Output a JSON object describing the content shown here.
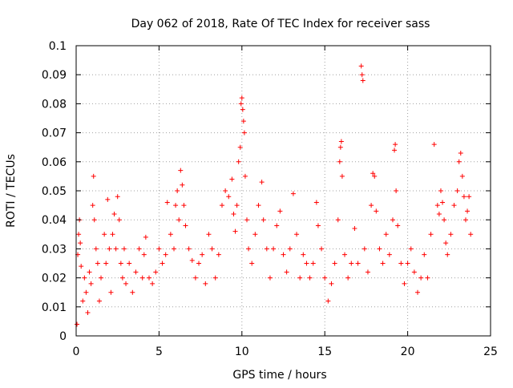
{
  "chart_data": {
    "type": "scatter",
    "title": "Day 062 of 2018, Rate Of TEC Index for receiver sass",
    "xlabel": "GPS time / hours",
    "ylabel": "ROTI / TECUs",
    "xlim": [
      0,
      25
    ],
    "ylim": [
      0,
      0.1
    ],
    "x_ticks": [
      0,
      5,
      10,
      15,
      20,
      25
    ],
    "x_tick_labels": [
      "0",
      "5",
      "10",
      "15",
      "20",
      "25"
    ],
    "y_ticks": [
      0,
      0.01,
      0.02,
      0.03,
      0.04,
      0.05,
      0.06,
      0.07,
      0.08,
      0.09,
      0.1
    ],
    "y_tick_labels": [
      "0",
      "0.01",
      "0.02",
      "0.03",
      "0.04",
      "0.05",
      "0.06",
      "0.07",
      "0.08",
      "0.09",
      "0.1"
    ],
    "grid": true,
    "marker": "plus",
    "marker_color": "#ff0000",
    "series": [
      {
        "points": [
          [
            0.05,
            0.004
          ],
          [
            0.1,
            0.028
          ],
          [
            0.15,
            0.035
          ],
          [
            0.2,
            0.04
          ],
          [
            0.25,
            0.032
          ],
          [
            0.3,
            0.024
          ],
          [
            0.4,
            0.012
          ],
          [
            0.5,
            0.02
          ],
          [
            0.6,
            0.015
          ],
          [
            0.7,
            0.008
          ],
          [
            0.8,
            0.022
          ],
          [
            0.9,
            0.018
          ],
          [
            1.0,
            0.045
          ],
          [
            1.05,
            0.055
          ],
          [
            1.1,
            0.04
          ],
          [
            1.2,
            0.03
          ],
          [
            1.3,
            0.025
          ],
          [
            1.4,
            0.012
          ],
          [
            1.5,
            0.02
          ],
          [
            1.7,
            0.035
          ],
          [
            1.8,
            0.025
          ],
          [
            1.9,
            0.047
          ],
          [
            2.0,
            0.03
          ],
          [
            2.1,
            0.015
          ],
          [
            2.2,
            0.035
          ],
          [
            2.3,
            0.042
          ],
          [
            2.4,
            0.03
          ],
          [
            2.5,
            0.048
          ],
          [
            2.6,
            0.04
          ],
          [
            2.7,
            0.025
          ],
          [
            2.8,
            0.02
          ],
          [
            2.9,
            0.03
          ],
          [
            3.0,
            0.018
          ],
          [
            3.2,
            0.025
          ],
          [
            3.4,
            0.015
          ],
          [
            3.6,
            0.022
          ],
          [
            3.8,
            0.03
          ],
          [
            4.0,
            0.02
          ],
          [
            4.1,
            0.028
          ],
          [
            4.2,
            0.034
          ],
          [
            4.4,
            0.02
          ],
          [
            4.6,
            0.018
          ],
          [
            4.8,
            0.022
          ],
          [
            5.0,
            0.03
          ],
          [
            5.2,
            0.025
          ],
          [
            5.4,
            0.028
          ],
          [
            5.5,
            0.046
          ],
          [
            5.7,
            0.035
          ],
          [
            5.9,
            0.03
          ],
          [
            6.0,
            0.045
          ],
          [
            6.1,
            0.05
          ],
          [
            6.2,
            0.04
          ],
          [
            6.3,
            0.057
          ],
          [
            6.4,
            0.052
          ],
          [
            6.5,
            0.045
          ],
          [
            6.6,
            0.038
          ],
          [
            6.8,
            0.03
          ],
          [
            7.0,
            0.026
          ],
          [
            7.2,
            0.02
          ],
          [
            7.4,
            0.025
          ],
          [
            7.6,
            0.028
          ],
          [
            7.8,
            0.018
          ],
          [
            8.0,
            0.035
          ],
          [
            8.2,
            0.03
          ],
          [
            8.4,
            0.02
          ],
          [
            8.6,
            0.028
          ],
          [
            8.8,
            0.045
          ],
          [
            9.0,
            0.05
          ],
          [
            9.2,
            0.048
          ],
          [
            9.4,
            0.054
          ],
          [
            9.5,
            0.042
          ],
          [
            9.6,
            0.036
          ],
          [
            9.7,
            0.045
          ],
          [
            9.8,
            0.06
          ],
          [
            9.9,
            0.065
          ],
          [
            9.95,
            0.08
          ],
          [
            10.0,
            0.082
          ],
          [
            10.05,
            0.078
          ],
          [
            10.1,
            0.074
          ],
          [
            10.15,
            0.07
          ],
          [
            10.2,
            0.055
          ],
          [
            10.3,
            0.04
          ],
          [
            10.4,
            0.03
          ],
          [
            10.6,
            0.025
          ],
          [
            10.8,
            0.035
          ],
          [
            11.0,
            0.045
          ],
          [
            11.2,
            0.053
          ],
          [
            11.3,
            0.04
          ],
          [
            11.5,
            0.03
          ],
          [
            11.7,
            0.02
          ],
          [
            11.9,
            0.03
          ],
          [
            12.1,
            0.038
          ],
          [
            12.3,
            0.043
          ],
          [
            12.5,
            0.028
          ],
          [
            12.7,
            0.022
          ],
          [
            12.9,
            0.03
          ],
          [
            13.1,
            0.049
          ],
          [
            13.3,
            0.035
          ],
          [
            13.5,
            0.02
          ],
          [
            13.7,
            0.028
          ],
          [
            13.9,
            0.025
          ],
          [
            14.1,
            0.02
          ],
          [
            14.3,
            0.025
          ],
          [
            14.5,
            0.046
          ],
          [
            14.6,
            0.038
          ],
          [
            14.8,
            0.03
          ],
          [
            15.0,
            0.02
          ],
          [
            15.2,
            0.012
          ],
          [
            15.4,
            0.018
          ],
          [
            15.6,
            0.025
          ],
          [
            15.8,
            0.04
          ],
          [
            15.9,
            0.06
          ],
          [
            15.95,
            0.065
          ],
          [
            16.0,
            0.067
          ],
          [
            16.05,
            0.055
          ],
          [
            16.2,
            0.028
          ],
          [
            16.4,
            0.02
          ],
          [
            16.6,
            0.025
          ],
          [
            16.8,
            0.037
          ],
          [
            17.0,
            0.025
          ],
          [
            17.2,
            0.093
          ],
          [
            17.25,
            0.09
          ],
          [
            17.3,
            0.088
          ],
          [
            17.4,
            0.03
          ],
          [
            17.6,
            0.022
          ],
          [
            17.8,
            0.045
          ],
          [
            17.9,
            0.056
          ],
          [
            18.0,
            0.055
          ],
          [
            18.1,
            0.043
          ],
          [
            18.3,
            0.03
          ],
          [
            18.5,
            0.025
          ],
          [
            18.7,
            0.035
          ],
          [
            18.9,
            0.028
          ],
          [
            19.1,
            0.04
          ],
          [
            19.2,
            0.064
          ],
          [
            19.25,
            0.066
          ],
          [
            19.3,
            0.05
          ],
          [
            19.4,
            0.038
          ],
          [
            19.6,
            0.025
          ],
          [
            19.8,
            0.018
          ],
          [
            20.0,
            0.025
          ],
          [
            20.2,
            0.03
          ],
          [
            20.4,
            0.022
          ],
          [
            20.6,
            0.015
          ],
          [
            20.8,
            0.02
          ],
          [
            21.0,
            0.028
          ],
          [
            21.2,
            0.02
          ],
          [
            21.4,
            0.035
          ],
          [
            21.6,
            0.066
          ],
          [
            21.8,
            0.045
          ],
          [
            21.9,
            0.042
          ],
          [
            22.0,
            0.05
          ],
          [
            22.1,
            0.046
          ],
          [
            22.2,
            0.04
          ],
          [
            22.3,
            0.032
          ],
          [
            22.4,
            0.028
          ],
          [
            22.6,
            0.035
          ],
          [
            22.8,
            0.045
          ],
          [
            23.0,
            0.05
          ],
          [
            23.1,
            0.06
          ],
          [
            23.2,
            0.063
          ],
          [
            23.3,
            0.055
          ],
          [
            23.4,
            0.048
          ],
          [
            23.5,
            0.04
          ],
          [
            23.6,
            0.043
          ],
          [
            23.7,
            0.048
          ],
          [
            23.8,
            0.035
          ]
        ]
      }
    ]
  }
}
